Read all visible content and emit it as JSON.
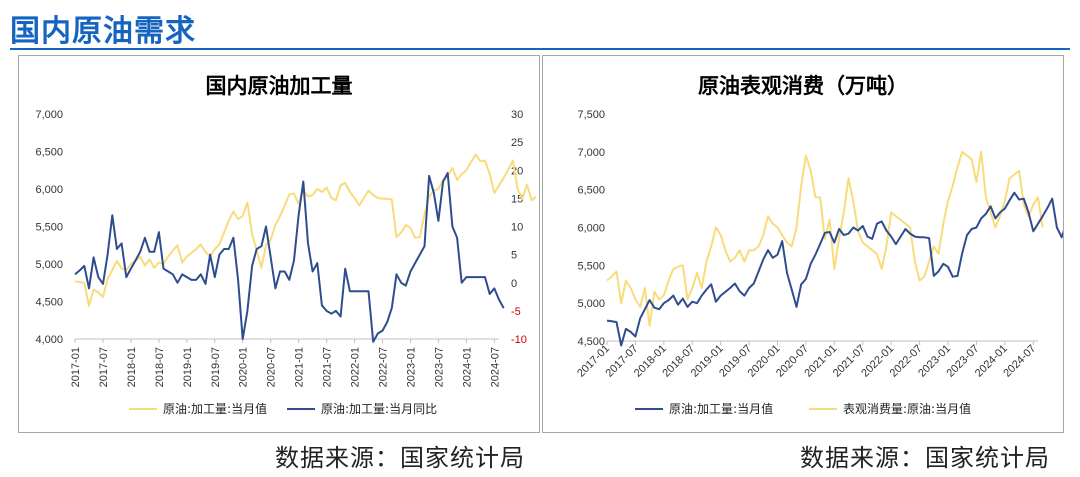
{
  "page": {
    "title": "国内原油需求"
  },
  "sources": {
    "left": "数据来源：国家统计局",
    "right": "数据来源：国家统计局"
  },
  "colors": {
    "yellow": "#f8dc7c",
    "blue": "#2f4d8e",
    "accent": "#1565c0"
  },
  "chart_data": [
    {
      "type": "line",
      "title": "国内原油加工量",
      "x_ticks": [
        "2017-01",
        "2017-07",
        "2018-01",
        "2018-07",
        "2019-01",
        "2019-07",
        "2020-01",
        "2020-07",
        "2021-01",
        "2021-07",
        "2022-01",
        "2022-07",
        "2023-01",
        "2023-07",
        "2024-01",
        "2024-07"
      ],
      "x_start": "2017-01",
      "ylim_left": [
        4000,
        7000
      ],
      "yticks_left": [
        "7,000",
        "6,500",
        "6,000",
        "5,500",
        "5,000",
        "4,500",
        "4,000"
      ],
      "ylim_right": [
        -10,
        30
      ],
      "yticks_right": [
        "30",
        "25",
        "20",
        "15",
        "10",
        "5",
        "0",
        "-5",
        "-10"
      ],
      "legend_position": "bottom",
      "series": [
        {
          "name": "原油:加工量:当月值",
          "axis": "left",
          "color": "#f8dc7c",
          "values": [
            4770,
            4760,
            4750,
            4440,
            4660,
            4620,
            4560,
            4800,
            4920,
            5040,
            4940,
            4920,
            5000,
            5040,
            5100,
            4980,
            5060,
            4950,
            5020,
            5000,
            5100,
            5180,
            5250,
            5020,
            5100,
            5150,
            5200,
            5260,
            5160,
            5100,
            5200,
            5260,
            5420,
            5580,
            5700,
            5600,
            5640,
            5820,
            5400,
            5180,
            4950,
            5250,
            5320,
            5520,
            5640,
            5780,
            5930,
            5940,
            5800,
            5980,
            5900,
            5920,
            6000,
            5960,
            6020,
            5880,
            5850,
            6050,
            6080,
            5960,
            5880,
            5780,
            5880,
            5980,
            5920,
            5880,
            5870,
            5870,
            5860,
            5360,
            5420,
            5520,
            5480,
            5350,
            5360,
            5660,
            5900,
            5980,
            6000,
            6120,
            6180,
            6280,
            6120,
            6200,
            6250,
            6360,
            6460,
            6370,
            6380,
            6200,
            5950,
            6050,
            6150,
            6260,
            6380,
            6000,
            5870,
            6060,
            5850,
            5900
          ]
        },
        {
          "name": "原油:加工量:当月同比",
          "axis": "right",
          "color": "#2f4d8e",
          "values": [
            1.5,
            2.2,
            3,
            -1,
            4.5,
            1,
            -0.2,
            5,
            12,
            6,
            7,
            1,
            2.5,
            4,
            5.5,
            8,
            5.5,
            5.5,
            9,
            2.5,
            2,
            1.5,
            0,
            1.5,
            1,
            0.5,
            0.5,
            1.5,
            -0.2,
            5,
            1,
            5,
            6,
            6,
            8,
            0.5,
            -10,
            -5,
            3,
            6,
            6.5,
            10,
            4.5,
            -1,
            2,
            2,
            0.5,
            4,
            12,
            18,
            7,
            2,
            3.5,
            -4,
            -5,
            -5.5,
            -5,
            -6,
            2.5,
            -1.5,
            -1.5,
            -1.5,
            -1.5,
            -1.5,
            -10.5,
            -9,
            -8.5,
            -7,
            -4.5,
            1.5,
            0,
            -0.5,
            2,
            3.5,
            5,
            6.5,
            19,
            16,
            11,
            18,
            19.5,
            10,
            8,
            0,
            1,
            1,
            1,
            1,
            1,
            -2,
            -1,
            -3,
            -4.5
          ]
        }
      ]
    },
    {
      "type": "line",
      "title": "原油表观消费（万吨）",
      "x_ticks": [
        "2017-01",
        "2017-07",
        "2018-01",
        "2018-07",
        "2019-01",
        "2019-07",
        "2020-01",
        "2020-07",
        "2021-01",
        "2021-07",
        "2022-01",
        "2022-07",
        "2023-01",
        "2023-07",
        "2024-01",
        "2024-07"
      ],
      "x_start": "2017-01",
      "ylim": [
        4500,
        7500
      ],
      "yticks": [
        "7,500",
        "7,000",
        "6,500",
        "6,000",
        "5,500",
        "5,000",
        "4,500"
      ],
      "legend_position": "bottom",
      "series": [
        {
          "name": "原油:加工量:当月值",
          "color": "#2f4d8e",
          "values": [
            4770,
            4760,
            4750,
            4440,
            4660,
            4620,
            4560,
            4800,
            4920,
            5040,
            4940,
            4920,
            5000,
            5040,
            5100,
            4980,
            5060,
            4950,
            5020,
            5000,
            5100,
            5180,
            5250,
            5020,
            5100,
            5150,
            5200,
            5260,
            5160,
            5100,
            5200,
            5260,
            5420,
            5580,
            5700,
            5600,
            5640,
            5820,
            5400,
            5180,
            4950,
            5250,
            5320,
            5520,
            5640,
            5780,
            5930,
            5940,
            5800,
            5980,
            5900,
            5920,
            6000,
            5960,
            6020,
            5880,
            5850,
            6050,
            6080,
            5960,
            5880,
            5780,
            5880,
            5980,
            5920,
            5880,
            5870,
            5870,
            5860,
            5360,
            5420,
            5520,
            5480,
            5350,
            5360,
            5660,
            5900,
            5980,
            6000,
            6120,
            6180,
            6280,
            6120,
            6200,
            6250,
            6360,
            6460,
            6370,
            6380,
            6200,
            5950,
            6050,
            6150,
            6260,
            6380,
            6000,
            5870,
            6060,
            5850,
            5900
          ]
        },
        {
          "name": "表观消费量:原油:当月值",
          "color": "#f8dc7c",
          "values": [
            5300,
            5350,
            5420,
            5000,
            5300,
            5200,
            5050,
            4950,
            5200,
            4700,
            5150,
            5050,
            5100,
            5300,
            5450,
            5480,
            5500,
            5050,
            5200,
            5400,
            5200,
            5550,
            5750,
            6000,
            5900,
            5700,
            5550,
            5600,
            5700,
            5550,
            5700,
            5700,
            5750,
            5900,
            6150,
            6050,
            6000,
            5900,
            5800,
            5750,
            6000,
            6550,
            6950,
            6750,
            6400,
            6400,
            5850,
            6100,
            5450,
            5850,
            6200,
            6650,
            6350,
            5950,
            5800,
            5750,
            5700,
            5650,
            5450,
            5750,
            6200,
            6150,
            6100,
            6050,
            6000,
            5550,
            5300,
            5350,
            5550,
            5750,
            5650,
            6050,
            6350,
            6550,
            6800,
            7000,
            6950,
            6900,
            6600,
            7000,
            6400,
            6200,
            6000,
            6150,
            6350,
            6650,
            6700,
            6750,
            6300,
            6150,
            6300,
            6400,
            6000
          ]
        }
      ]
    }
  ]
}
